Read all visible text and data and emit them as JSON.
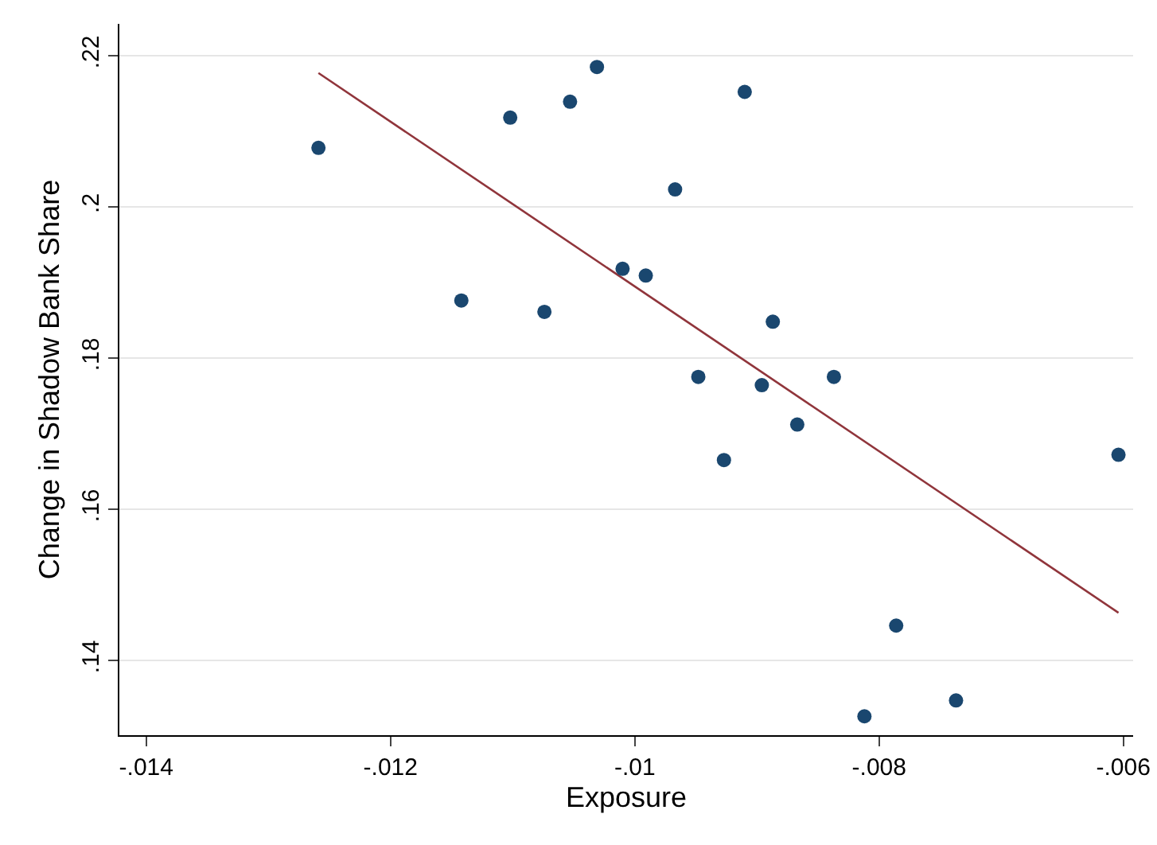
{
  "chart_data": {
    "type": "scatter",
    "xlabel": "Exposure",
    "ylabel": "Change in Shadow Bank Share",
    "xlim": [
      -0.01422,
      -0.00592
    ],
    "xticks": [
      {
        "value": -0.014,
        "label": "-.014"
      },
      {
        "value": -0.012,
        "label": "-.012"
      },
      {
        "value": -0.01,
        "label": "-.01"
      },
      {
        "value": -0.008,
        "label": "-.008"
      },
      {
        "value": -0.006,
        "label": "-.006"
      }
    ],
    "ylim": [
      0.1301,
      0.2242
    ],
    "yticks": [
      {
        "value": 0.14,
        "label": ".14"
      },
      {
        "value": 0.16,
        "label": ".16"
      },
      {
        "value": 0.18,
        "label": ".18"
      },
      {
        "value": 0.2,
        "label": ".2"
      },
      {
        "value": 0.22,
        "label": ".22"
      }
    ],
    "grid": "y",
    "series": [
      {
        "marker": "circle",
        "color": "#1a476f",
        "x": [
          -0.01259,
          -0.01142,
          -0.01102,
          -0.01074,
          -0.01053,
          -0.01031,
          -0.0101,
          -0.00991,
          -0.00967,
          -0.00948,
          -0.00927,
          -0.0091,
          -0.00896,
          -0.00887,
          -0.00867,
          -0.00837,
          -0.00812,
          -0.00786,
          -0.00737,
          -0.00604
        ],
        "values": [
          0.2078,
          0.1876,
          0.2118,
          0.1861,
          0.2139,
          0.2185,
          0.1918,
          0.1909,
          0.2023,
          0.1775,
          0.1665,
          0.2152,
          0.1764,
          0.1848,
          0.1712,
          0.1775,
          0.1326,
          0.1446,
          0.1347,
          0.1672
        ]
      },
      {
        "type": "line",
        "color": "#90353b",
        "x": [
          -0.01259,
          -0.00604
        ],
        "values": [
          0.2177,
          0.1463
        ]
      }
    ]
  }
}
